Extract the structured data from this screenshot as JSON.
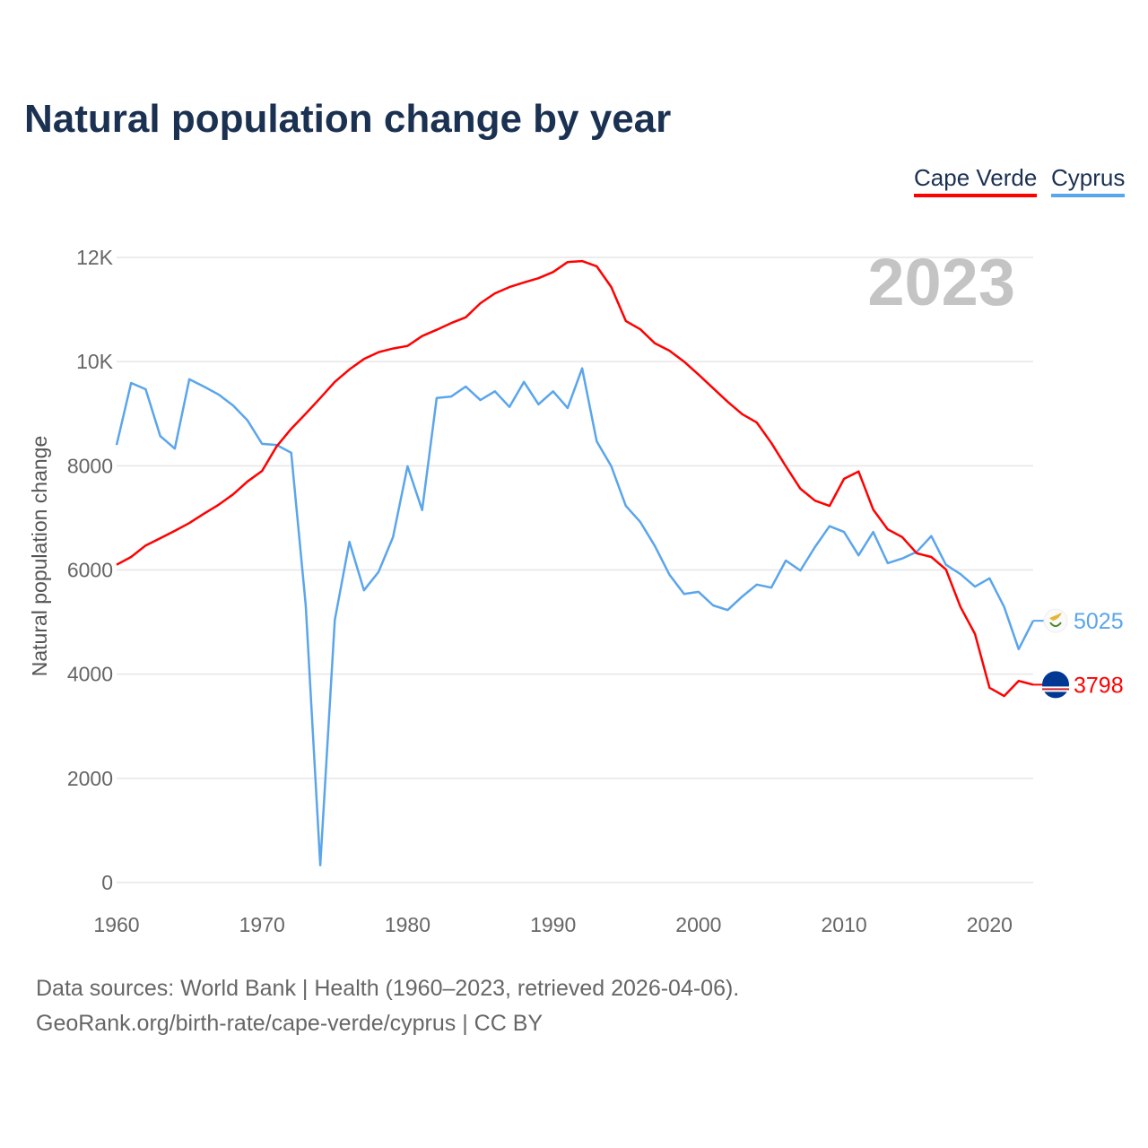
{
  "header": {
    "title": "Natural population change by year"
  },
  "legend": [
    {
      "label": "Cape Verde",
      "color": "#ff0000"
    },
    {
      "label": "Cyprus",
      "color": "#5aa5ec"
    }
  ],
  "footer": {
    "line1": "Data sources: World Bank | Health (1960–2023, retrieved 2026-04-06).",
    "line2": "GeoRank.org/birth-rate/cape-verde/cyprus | CC BY"
  },
  "chart_data": {
    "type": "line",
    "title": "Natural population change by year",
    "xlabel": "",
    "ylabel": "Natural population change",
    "year_watermark": "2023",
    "xlim": [
      1960,
      2023
    ],
    "ylim": [
      0,
      12000
    ],
    "grid": true,
    "legend_position": "top-right",
    "x_ticks": [
      1960,
      1970,
      1980,
      1990,
      2000,
      2010,
      2020
    ],
    "x_tick_labels": [
      "1960",
      "1970",
      "1980",
      "1990",
      "2000",
      "2010",
      "2020"
    ],
    "y_ticks": [
      0,
      2000,
      4000,
      6000,
      8000,
      10000,
      12000
    ],
    "y_tick_labels": [
      "0",
      "2000",
      "4000",
      "6000",
      "8000",
      "10K",
      "12K"
    ],
    "x": [
      1960,
      1961,
      1962,
      1963,
      1964,
      1965,
      1966,
      1967,
      1968,
      1969,
      1970,
      1971,
      1972,
      1973,
      1974,
      1975,
      1976,
      1977,
      1978,
      1979,
      1980,
      1981,
      1982,
      1983,
      1984,
      1985,
      1986,
      1987,
      1988,
      1989,
      1990,
      1991,
      1992,
      1993,
      1994,
      1995,
      1996,
      1997,
      1998,
      1999,
      2000,
      2001,
      2002,
      2003,
      2004,
      2005,
      2006,
      2007,
      2008,
      2009,
      2010,
      2011,
      2012,
      2013,
      2014,
      2015,
      2016,
      2017,
      2018,
      2019,
      2020,
      2021,
      2022,
      2023
    ],
    "series": [
      {
        "name": "Cape Verde",
        "color": "#ff0000",
        "end_label": "3798",
        "values": [
          6100,
          6250,
          6470,
          6610,
          6750,
          6900,
          7080,
          7250,
          7450,
          7700,
          7900,
          8370,
          8710,
          9000,
          9300,
          9610,
          9850,
          10050,
          10180,
          10250,
          10300,
          10490,
          10610,
          10740,
          10850,
          11120,
          11310,
          11430,
          11520,
          11600,
          11720,
          11910,
          11930,
          11830,
          11430,
          10780,
          10620,
          10350,
          10210,
          10000,
          9750,
          9490,
          9230,
          8990,
          8830,
          8440,
          7990,
          7560,
          7330,
          7230,
          7750,
          7890,
          7160,
          6780,
          6630,
          6320,
          6250,
          6010,
          5290,
          4770,
          3740,
          3580,
          3870,
          3798
        ]
      },
      {
        "name": "Cyprus",
        "color": "#5aa5ec",
        "end_label": "5025",
        "values": [
          8400,
          9590,
          9470,
          8570,
          8330,
          9660,
          9520,
          9370,
          9160,
          8870,
          8420,
          8400,
          8250,
          5320,
          330,
          5040,
          6540,
          5610,
          5960,
          6630,
          7990,
          7150,
          9300,
          9330,
          9520,
          9260,
          9430,
          9130,
          9610,
          9180,
          9430,
          9110,
          9870,
          8470,
          7990,
          7230,
          6920,
          6460,
          5910,
          5540,
          5580,
          5320,
          5230,
          5490,
          5720,
          5660,
          6180,
          5990,
          6440,
          6840,
          6730,
          6280,
          6730,
          6130,
          6220,
          6350,
          6650,
          6100,
          5920,
          5680,
          5840,
          5290,
          4480,
          5025
        ]
      }
    ]
  }
}
